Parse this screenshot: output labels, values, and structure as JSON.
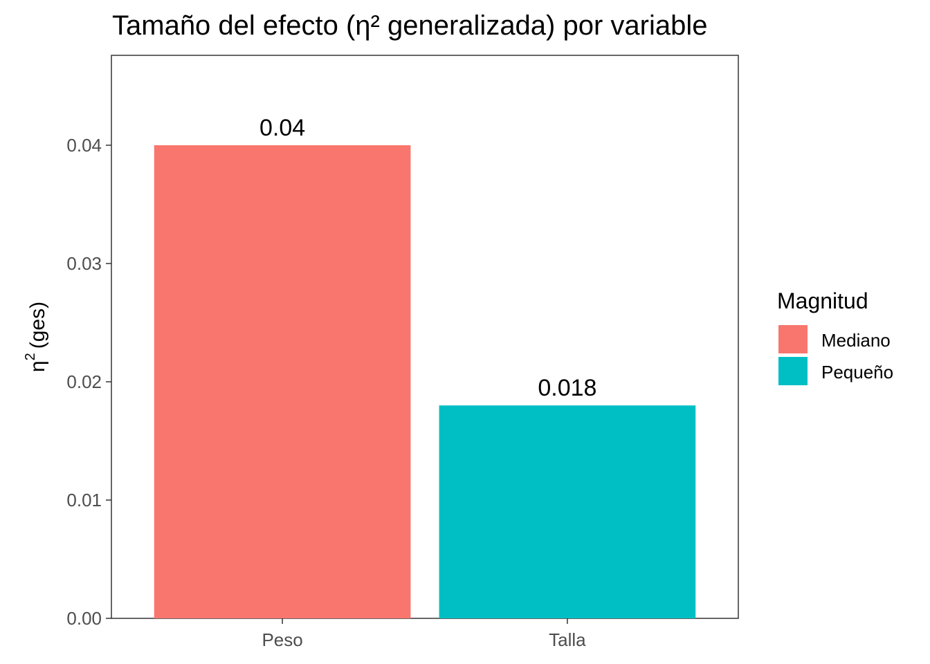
{
  "chart_data": {
    "type": "bar",
    "title": "Tamaño del efecto (η² generalizada) por variable",
    "xlabel": "",
    "ylabel_symbol": "η",
    "ylabel_superscript": "2",
    "ylabel_suffix": "(ges)",
    "categories": [
      "Peso",
      "Talla"
    ],
    "values": [
      0.04,
      0.018
    ],
    "data_labels": [
      "0.04",
      "0.018"
    ],
    "fill_groups": [
      "Mediano",
      "Pequeño"
    ],
    "ylim": [
      0,
      0.0476
    ],
    "y_ticks": [
      0,
      0.01,
      0.02,
      0.03,
      0.04
    ],
    "y_tick_labels": [
      "0.00",
      "0.01",
      "0.02",
      "0.03",
      "0.04"
    ],
    "grid": false,
    "legend": {
      "title": "Magnitud",
      "placement": "right",
      "entries": [
        {
          "label": "Mediano",
          "color": "#F8766D"
        },
        {
          "label": "Pequeño",
          "color": "#00BFC4"
        }
      ]
    }
  }
}
